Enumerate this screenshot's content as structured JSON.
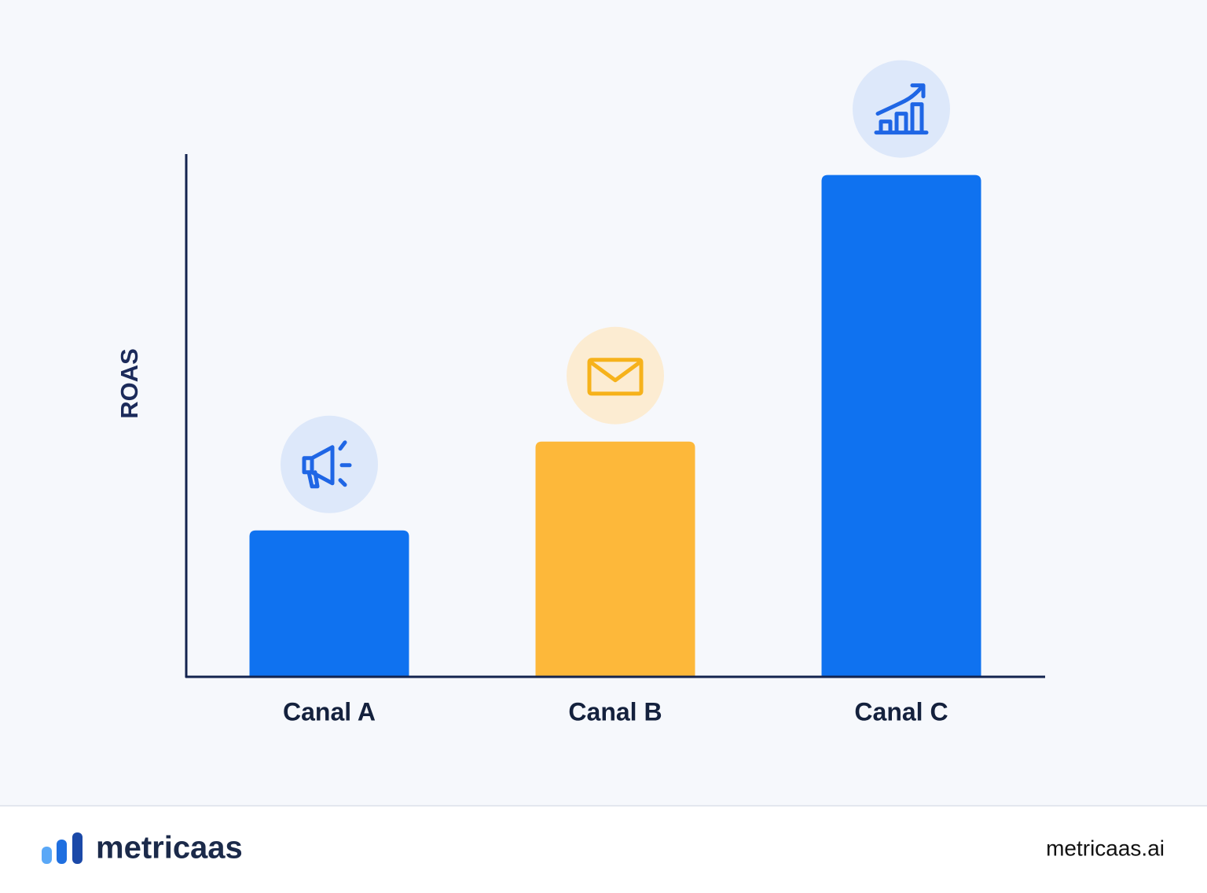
{
  "chart_data": {
    "type": "bar",
    "y_label": "ROAS",
    "categories": [
      "Canal A",
      "Canal B",
      "Canal C"
    ],
    "values": [
      2.8,
      4.5,
      9.6
    ],
    "colors": [
      "#0f72f0",
      "#fdb83a",
      "#0f72f0"
    ],
    "ylim": [
      0,
      10
    ],
    "grid": false
  },
  "footer": {
    "brand": "metricaas",
    "url": "metricaas.ai"
  }
}
